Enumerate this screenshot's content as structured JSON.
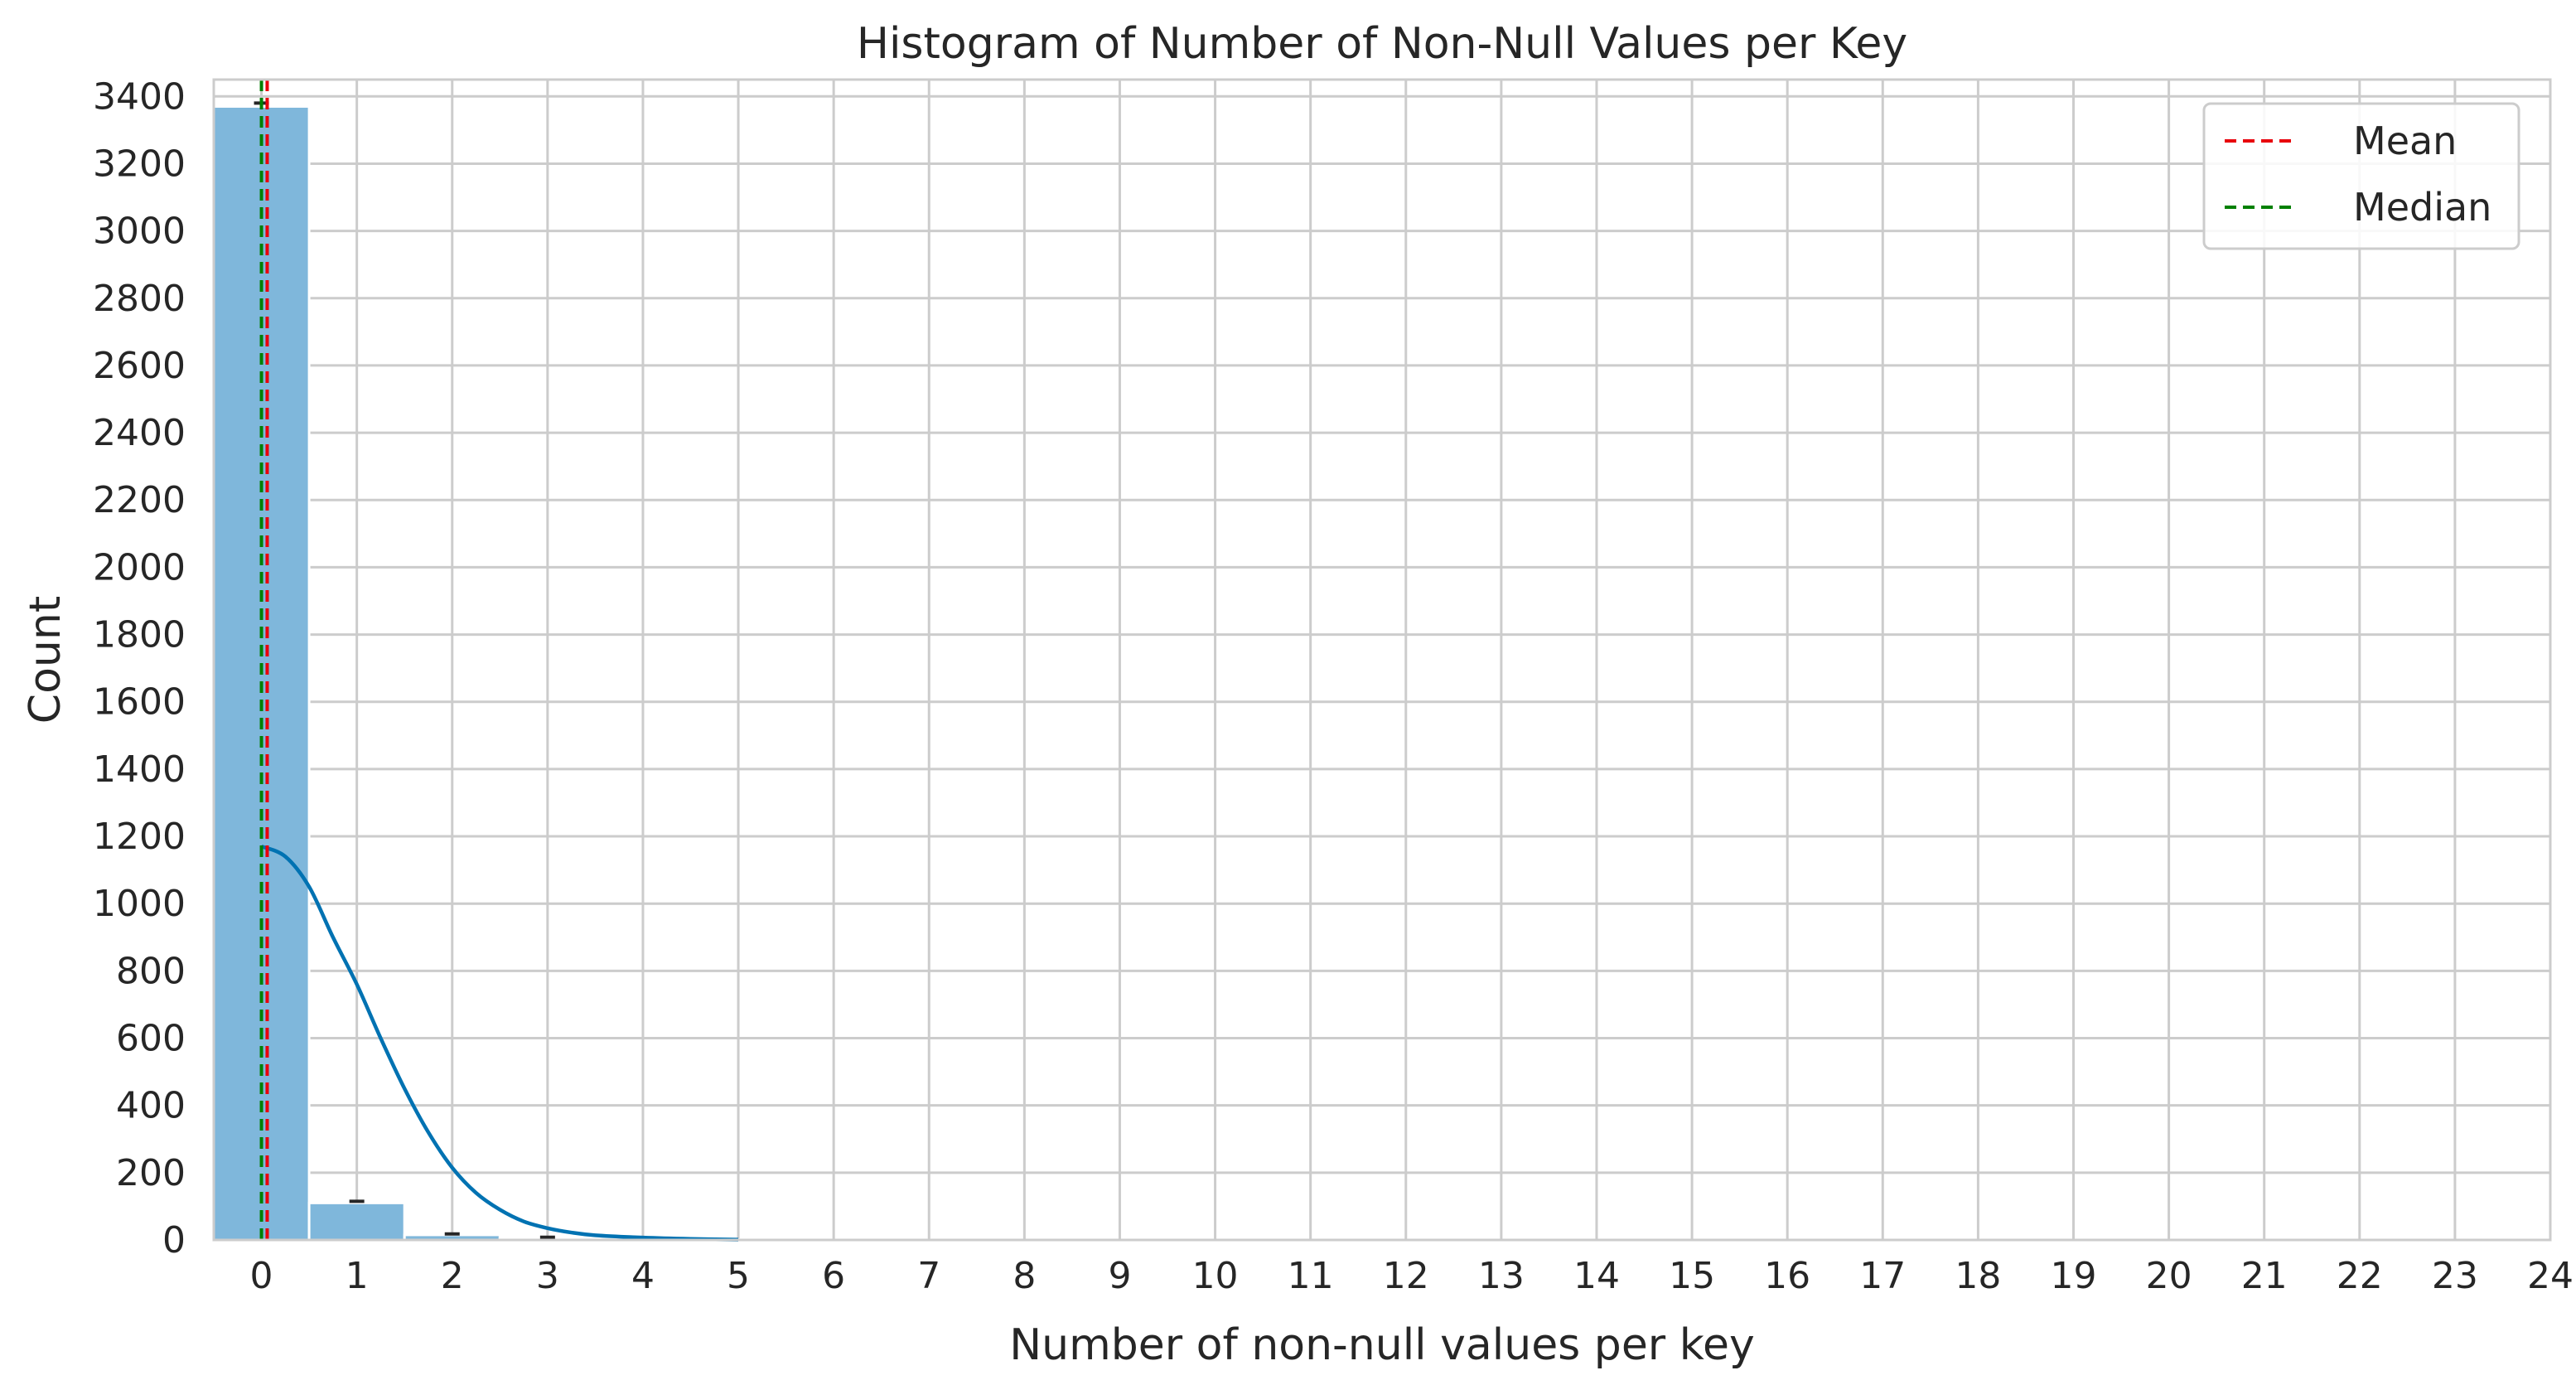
{
  "chart_data": {
    "type": "bar",
    "title": "Histogram of Number of Non-Null Values per Key",
    "xlabel": "Number of non-null values per key",
    "ylabel": "Count",
    "xlim": [
      -0.5,
      24
    ],
    "ylim": [
      0,
      3450
    ],
    "xticks": [
      0,
      1,
      2,
      3,
      4,
      5,
      6,
      7,
      8,
      9,
      10,
      11,
      12,
      13,
      14,
      15,
      16,
      17,
      18,
      19,
      20,
      21,
      22,
      23,
      24
    ],
    "yticks": [
      0,
      200,
      400,
      600,
      800,
      1000,
      1200,
      1400,
      1600,
      1800,
      2000,
      2200,
      2400,
      2600,
      2800,
      3000,
      3200,
      3400
    ],
    "grid": true,
    "categories": [
      0,
      1,
      2,
      3,
      4,
      5
    ],
    "values": [
      3370,
      110,
      15,
      4,
      3,
      1
    ],
    "error_bar_caps": [
      3380,
      115,
      18,
      8,
      6,
      0
    ],
    "kde": {
      "x": [
        0,
        0.25,
        0.5,
        0.75,
        1,
        1.25,
        1.5,
        1.75,
        2,
        2.25,
        2.5,
        2.75,
        3,
        3.25,
        3.5,
        4,
        4.5,
        5
      ],
      "y": [
        1170,
        1140,
        1050,
        900,
        760,
        600,
        450,
        320,
        215,
        140,
        90,
        55,
        35,
        22,
        14,
        7,
        3,
        1
      ]
    },
    "mean": 0.06,
    "median": 0,
    "legend": {
      "position": "top-right",
      "entries": [
        {
          "label": "Mean",
          "color": "#e8000b"
        },
        {
          "label": "Median",
          "color": "#008000"
        }
      ]
    },
    "colors": {
      "bar": "#7fb7db",
      "bar_edge": "#ffffff",
      "kde": "#0072b2",
      "grid": "#cccccc",
      "text": "#262626"
    }
  }
}
